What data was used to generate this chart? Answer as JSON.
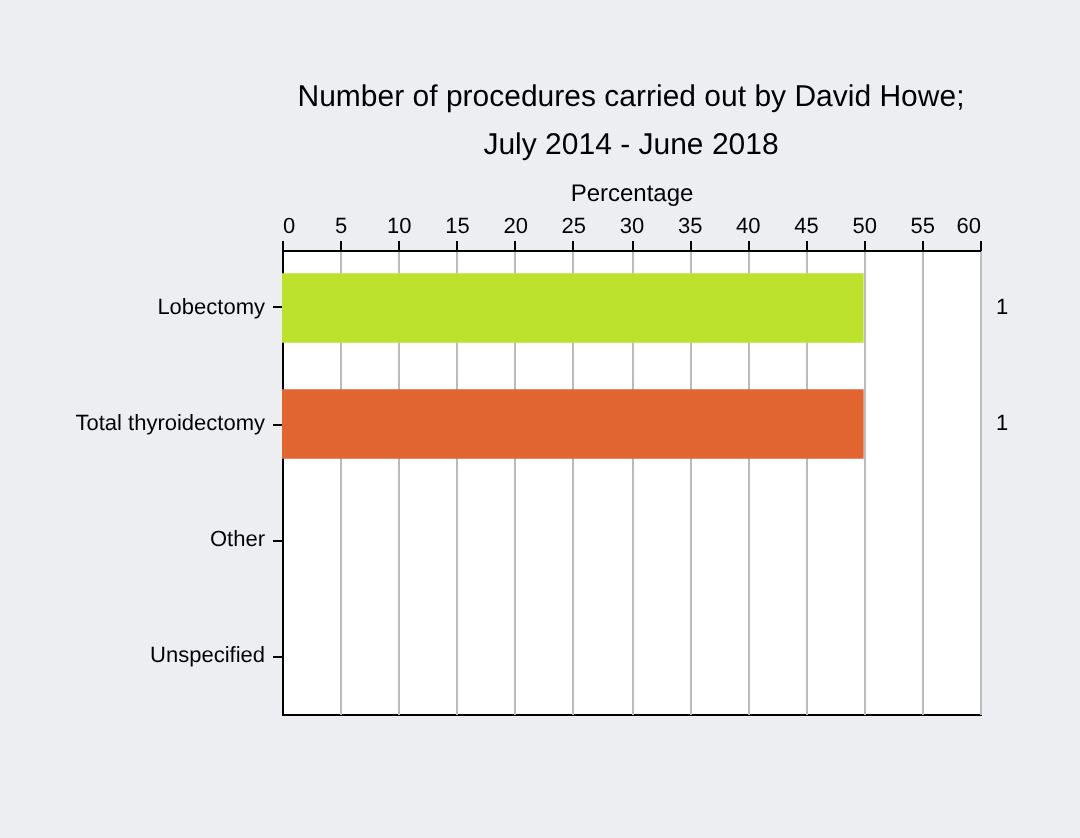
{
  "chart_data": {
    "type": "bar",
    "orientation": "horizontal",
    "title": "Number of procedures carried out by David Howe;\nJuly 2014 - June 2018",
    "xlabel": "Percentage",
    "categories": [
      "Lobectomy",
      "Total thyroidectomy",
      "Other",
      "Unspecified"
    ],
    "values": [
      50,
      50,
      0,
      0
    ],
    "colors": [
      "#bde22e",
      "#e06530",
      "#999999",
      "#999999"
    ],
    "annotations": [
      "1",
      "1"
    ],
    "legend": false,
    "xlim": [
      0,
      60
    ],
    "xticks": [
      0,
      5,
      10,
      15,
      20,
      25,
      30,
      35,
      40,
      45,
      50,
      55,
      60
    ],
    "grid": "x"
  }
}
